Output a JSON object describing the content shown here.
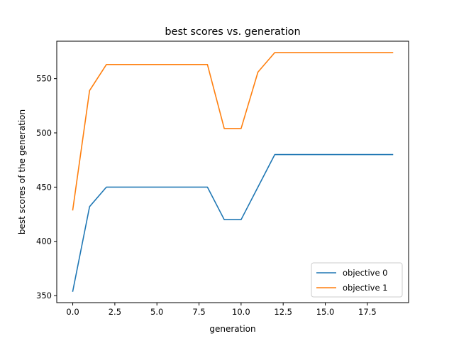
{
  "chart_data": {
    "type": "line",
    "title": "best scores vs. generation",
    "xlabel": "generation",
    "ylabel": "best scores of the generation",
    "xlim": [
      -0.95,
      19.95
    ],
    "ylim": [
      343.5,
      584.5
    ],
    "xticks": [
      0.0,
      2.5,
      5.0,
      7.5,
      10.0,
      12.5,
      15.0,
      17.5
    ],
    "xtick_labels": [
      "0.0",
      "2.5",
      "5.0",
      "7.5",
      "10.0",
      "12.5",
      "15.0",
      "17.5"
    ],
    "yticks": [
      350,
      400,
      450,
      500,
      550
    ],
    "ytick_labels": [
      "350",
      "400",
      "450",
      "500",
      "550"
    ],
    "grid": false,
    "legend_position": "lower-right",
    "x": [
      0,
      1,
      2,
      3,
      4,
      5,
      6,
      7,
      8,
      9,
      10,
      11,
      12,
      13,
      14,
      15,
      16,
      17,
      18,
      19
    ],
    "series": [
      {
        "name": "objective 0",
        "color": "#1f77b4",
        "values": [
          354,
          432,
          450,
          450,
          450,
          450,
          450,
          450,
          450,
          420,
          420,
          450,
          480,
          480,
          480,
          480,
          480,
          480,
          480,
          480
        ]
      },
      {
        "name": "objective 1",
        "color": "#ff7f0e",
        "values": [
          429,
          539,
          563,
          563,
          563,
          563,
          563,
          563,
          563,
          504,
          504,
          556,
          574,
          574,
          574,
          574,
          574,
          574,
          574,
          574
        ]
      }
    ]
  }
}
